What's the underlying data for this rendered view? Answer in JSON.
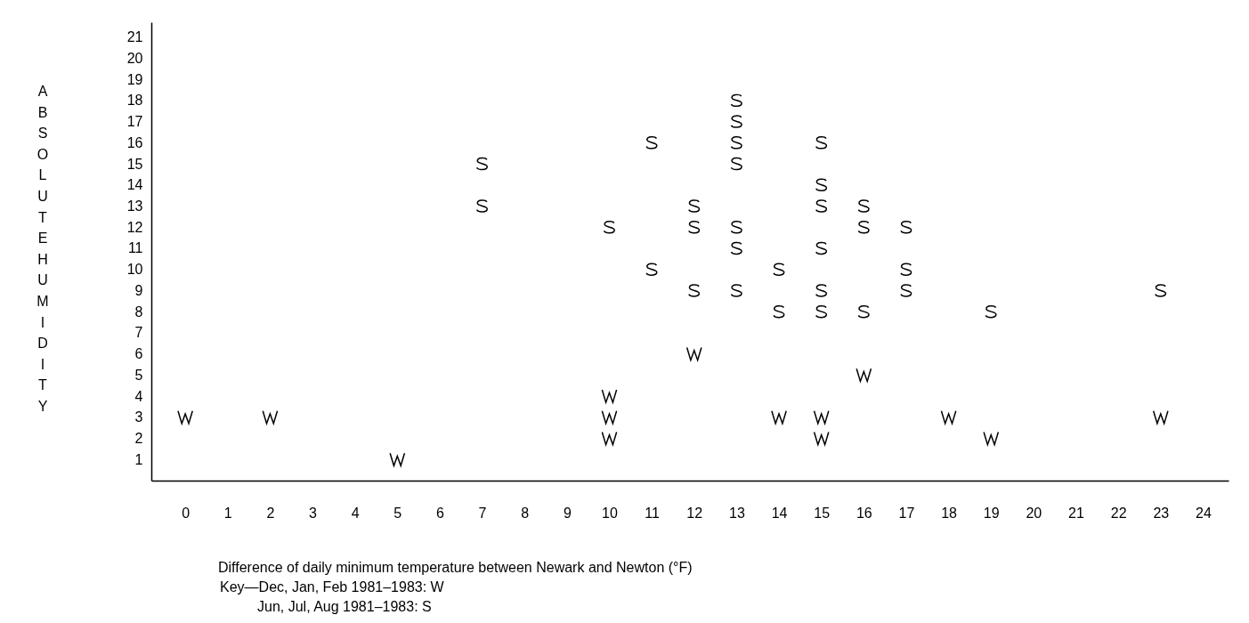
{
  "chart_data": {
    "type": "scatter",
    "xlabel": "Difference of daily minimum temperature between Newark and Newton (°F)",
    "ylabel": "ABSOLUTE HUMIDITY",
    "annotations": [
      "Key—Dec, Jan, Feb 1981–1983: W",
      "Jun, Jul, Aug 1981–1983: S"
    ],
    "xlim": [
      -0.8,
      24.6
    ],
    "xticks": [
      0,
      1,
      2,
      3,
      4,
      5,
      6,
      7,
      8,
      9,
      10,
      11,
      12,
      13,
      14,
      15,
      16,
      17,
      18,
      19,
      20,
      21,
      22,
      23,
      24
    ],
    "ylim": [
      0,
      21.7
    ],
    "yticks": [
      1,
      2,
      3,
      4,
      5,
      6,
      7,
      8,
      9,
      10,
      11,
      12,
      13,
      14,
      15,
      16,
      17,
      18,
      19,
      20,
      21
    ],
    "grid": false,
    "series": [
      {
        "color": "#000000",
        "x": [
          0,
          2,
          5,
          10,
          10,
          10,
          12,
          14,
          15,
          15,
          16,
          18,
          19,
          23
        ],
        "values": [
          3,
          3,
          1,
          4,
          3,
          2,
          6,
          3,
          3,
          2,
          5,
          3,
          2,
          3
        ]
      },
      {
        "color": "#000000",
        "x": [
          7,
          7,
          10,
          11,
          11,
          12,
          12,
          12,
          13,
          13,
          13,
          13,
          13,
          13,
          13,
          14,
          14,
          15,
          15,
          15,
          15,
          15,
          15,
          16,
          16,
          16,
          17,
          17,
          17,
          19,
          23
        ],
        "values": [
          15,
          13,
          12,
          16,
          10,
          13,
          12,
          9,
          18,
          17,
          16,
          15,
          12,
          11,
          9,
          10,
          8,
          16,
          14,
          13,
          11,
          9,
          8,
          13,
          12,
          8,
          12,
          10,
          9,
          8,
          9
        ]
      }
    ]
  }
}
